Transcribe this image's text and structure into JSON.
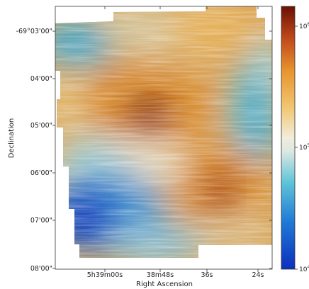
{
  "chart_data": {
    "type": "heatmap",
    "title": "",
    "xlabel": "Right Ascension",
    "ylabel": "Declination",
    "x_ticks": [
      "5h39m00s",
      "38m48s",
      "36s",
      "24s"
    ],
    "y_ticks": [
      "-69°03'00\"",
      "04'00\"",
      "05'00\"",
      "06'00\"",
      "07'00\"",
      "08'00\""
    ],
    "colorbar": {
      "scale": "log",
      "colormap": "blue-white-orange-red",
      "tick_labels": [
        "10^4",
        "10^5",
        "10^6"
      ],
      "ticks": [
        {
          "base": "10",
          "exp": "4"
        },
        {
          "base": "10",
          "exp": "5"
        },
        {
          "base": "10",
          "exp": "6"
        }
      ]
    },
    "overlay": "line-integral-convolution texture (magnetic field orientation)",
    "hotspots": [
      {
        "ra": "5h38m52s",
        "dec": "-69°05'00\"",
        "level": "high"
      },
      {
        "ra": "5h38m33s",
        "dec": "-69°06'30\"",
        "level": "high"
      },
      {
        "ra": "5h39m06s",
        "dec": "-69°07'15\"",
        "level": "low"
      }
    ]
  },
  "colors": {
    "low": "#1a4fc8",
    "mid": "#e6e6de",
    "high": "#5a1008"
  }
}
